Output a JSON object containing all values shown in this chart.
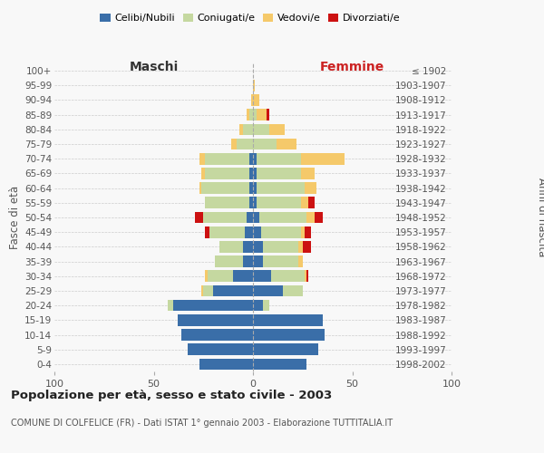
{
  "age_groups": [
    "0-4",
    "5-9",
    "10-14",
    "15-19",
    "20-24",
    "25-29",
    "30-34",
    "35-39",
    "40-44",
    "45-49",
    "50-54",
    "55-59",
    "60-64",
    "65-69",
    "70-74",
    "75-79",
    "80-84",
    "85-89",
    "90-94",
    "95-99",
    "100+"
  ],
  "birth_years": [
    "1998-2002",
    "1993-1997",
    "1988-1992",
    "1983-1987",
    "1978-1982",
    "1973-1977",
    "1968-1972",
    "1963-1967",
    "1958-1962",
    "1953-1957",
    "1948-1952",
    "1943-1947",
    "1938-1942",
    "1933-1937",
    "1928-1932",
    "1923-1927",
    "1918-1922",
    "1913-1917",
    "1908-1912",
    "1903-1907",
    "≤ 1902"
  ],
  "maschi": {
    "celibi": [
      27,
      33,
      36,
      38,
      40,
      20,
      10,
      5,
      5,
      4,
      3,
      2,
      2,
      2,
      2,
      0,
      0,
      0,
      0,
      0,
      0
    ],
    "coniugati": [
      0,
      0,
      0,
      0,
      3,
      5,
      13,
      14,
      12,
      18,
      22,
      22,
      24,
      22,
      22,
      8,
      5,
      2,
      0,
      0,
      0
    ],
    "vedovi": [
      0,
      0,
      0,
      0,
      0,
      1,
      1,
      0,
      0,
      0,
      0,
      0,
      1,
      2,
      3,
      3,
      2,
      1,
      1,
      0,
      0
    ],
    "divorziati": [
      0,
      0,
      0,
      0,
      0,
      0,
      0,
      0,
      0,
      2,
      4,
      0,
      0,
      0,
      0,
      0,
      0,
      0,
      0,
      0,
      0
    ]
  },
  "femmine": {
    "nubili": [
      27,
      33,
      36,
      35,
      5,
      15,
      9,
      5,
      5,
      4,
      3,
      2,
      2,
      2,
      2,
      0,
      0,
      0,
      0,
      0,
      0
    ],
    "coniugate": [
      0,
      0,
      0,
      0,
      3,
      10,
      17,
      18,
      18,
      20,
      24,
      22,
      24,
      22,
      22,
      12,
      8,
      2,
      0,
      0,
      0
    ],
    "vedove": [
      0,
      0,
      0,
      0,
      0,
      0,
      1,
      2,
      2,
      2,
      4,
      4,
      6,
      7,
      22,
      10,
      8,
      5,
      3,
      1,
      0
    ],
    "divorziate": [
      0,
      0,
      0,
      0,
      0,
      0,
      1,
      0,
      4,
      3,
      4,
      3,
      0,
      0,
      0,
      0,
      0,
      1,
      0,
      0,
      0
    ]
  },
  "colors": {
    "celibi": "#3a6ea8",
    "coniugati": "#c5d8a0",
    "vedovi": "#f5c96a",
    "divorziati": "#cc1111"
  },
  "xlim": 100,
  "title": "Popolazione per età, sesso e stato civile - 2003",
  "subtitle": "COMUNE DI COLFELICE (FR) - Dati ISTAT 1° gennaio 2003 - Elaborazione TUTTITALIA.IT",
  "xlabel_left": "Maschi",
  "xlabel_right": "Femmine",
  "ylabel": "Fasce di età",
  "ylabel_right": "Anni di nascita",
  "bg_color": "#f8f8f8",
  "grid_color": "#cccccc"
}
